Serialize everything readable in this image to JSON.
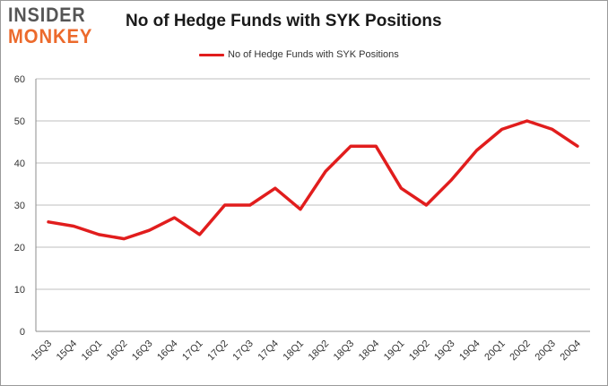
{
  "logo": {
    "line1": "INSIDER",
    "line2": "MONKEY"
  },
  "chart_data": {
    "type": "line",
    "title": "No of Hedge Funds with SYK Positions",
    "xlabel": "",
    "ylabel": "",
    "categories": [
      "15Q3",
      "15Q4",
      "16Q1",
      "16Q2",
      "16Q3",
      "16Q4",
      "17Q1",
      "17Q2",
      "17Q3",
      "17Q4",
      "18Q1",
      "18Q2",
      "18Q3",
      "18Q4",
      "19Q1",
      "19Q2",
      "19Q3",
      "19Q4",
      "20Q1",
      "20Q2",
      "20Q3",
      "20Q4"
    ],
    "series": [
      {
        "name": "No of Hedge Funds with SYK Positions",
        "color": "#e11d1d",
        "values": [
          26,
          25,
          23,
          22,
          24,
          27,
          23,
          30,
          30,
          34,
          29,
          38,
          44,
          44,
          34,
          30,
          36,
          43,
          48,
          50,
          48,
          44
        ]
      }
    ],
    "ylim": [
      0,
      60
    ],
    "yticks": [
      0,
      10,
      20,
      30,
      40,
      50,
      60
    ],
    "grid": true,
    "legend_position": "top-center"
  }
}
